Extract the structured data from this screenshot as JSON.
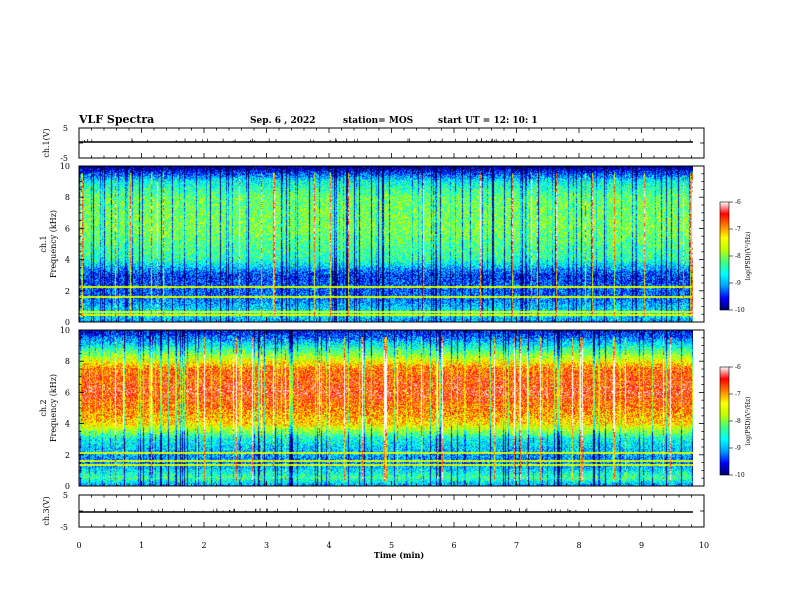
{
  "header": {
    "title": "VLF Spectra",
    "date": "Sep. 6  , 2022",
    "station": "station= MOS",
    "start": "start  UT  =    12: 10: 1"
  },
  "chart_data": [
    {
      "type": "line",
      "name": "ch1-voltage",
      "ylabel": "ch.1(V)",
      "ylim": [
        -5,
        5
      ],
      "yticks": [
        "5",
        "-5"
      ],
      "xlim": [
        0,
        10
      ],
      "approx_level": 0.6
    },
    {
      "type": "heatmap",
      "name": "ch1-spectrogram",
      "ylabel": "ch.1\nFrequency (kHz)",
      "ylabel_top": "ch.1",
      "ylabel_bottom": "Frequency (kHz)",
      "ylim": [
        0,
        10
      ],
      "yticks": [
        "0",
        "2",
        "4",
        "6",
        "8",
        "10"
      ],
      "xlim": [
        0,
        9.85
      ],
      "colorbar": {
        "label": "log(PSD)(V²/Hz)",
        "range": [
          -10,
          -6
        ],
        "ticks": [
          "-6",
          "-7",
          "-8",
          "-9",
          "-10"
        ]
      },
      "band_levels_khz": [
        [
          0,
          -9
        ],
        [
          0.5,
          -8.6
        ],
        [
          1.5,
          -9.2
        ],
        [
          3,
          -9.4
        ],
        [
          4,
          -8.4
        ],
        [
          6,
          -8.0
        ],
        [
          8,
          -8.1
        ],
        [
          9,
          -8.6
        ],
        [
          10,
          -10
        ]
      ],
      "spectral_lines_khz": [
        0.4,
        0.6,
        1.6,
        2.2
      ]
    },
    {
      "type": "heatmap",
      "name": "ch2-spectrogram",
      "ylabel_top": "ch.2",
      "ylabel_bottom": "Frequency (kHz)",
      "ylim": [
        0,
        10
      ],
      "yticks": [
        "0",
        "2",
        "4",
        "6",
        "8",
        "10"
      ],
      "xlim": [
        0,
        9.85
      ],
      "colorbar": {
        "label": "log(PSD)(V²/Hz)",
        "range": [
          -10,
          -6
        ],
        "ticks": [
          "-6",
          "-7",
          "-8",
          "-9",
          "-10"
        ]
      },
      "band_levels_khz": [
        [
          0,
          -9
        ],
        [
          0.5,
          -8.3
        ],
        [
          1.5,
          -9.2
        ],
        [
          3,
          -8.6
        ],
        [
          4,
          -7.2
        ],
        [
          6,
          -6.5
        ],
        [
          7.5,
          -6.8
        ],
        [
          8.5,
          -8.0
        ],
        [
          9.5,
          -9.2
        ],
        [
          10,
          -9.6
        ]
      ],
      "spectral_lines_khz": [
        1.3,
        1.6,
        2.1
      ]
    },
    {
      "type": "line",
      "name": "ch3-voltage",
      "ylabel": "ch.3(V)",
      "ylim": [
        -5,
        5
      ],
      "yticks": [
        "5",
        "-5"
      ],
      "xlim": [
        0,
        10
      ],
      "approx_level": 0.3
    }
  ],
  "x_axis": {
    "label": "Time  (min)",
    "ticks": [
      "0",
      "1",
      "2",
      "3",
      "4",
      "5",
      "6",
      "7",
      "8",
      "9",
      "10"
    ],
    "range": [
      0,
      10
    ]
  },
  "colormap": [
    "#000066",
    "#0000ff",
    "#00a0ff",
    "#00ffff",
    "#40ff80",
    "#c0ff00",
    "#ffff00",
    "#ff8000",
    "#ff0000",
    "#ffffff"
  ]
}
